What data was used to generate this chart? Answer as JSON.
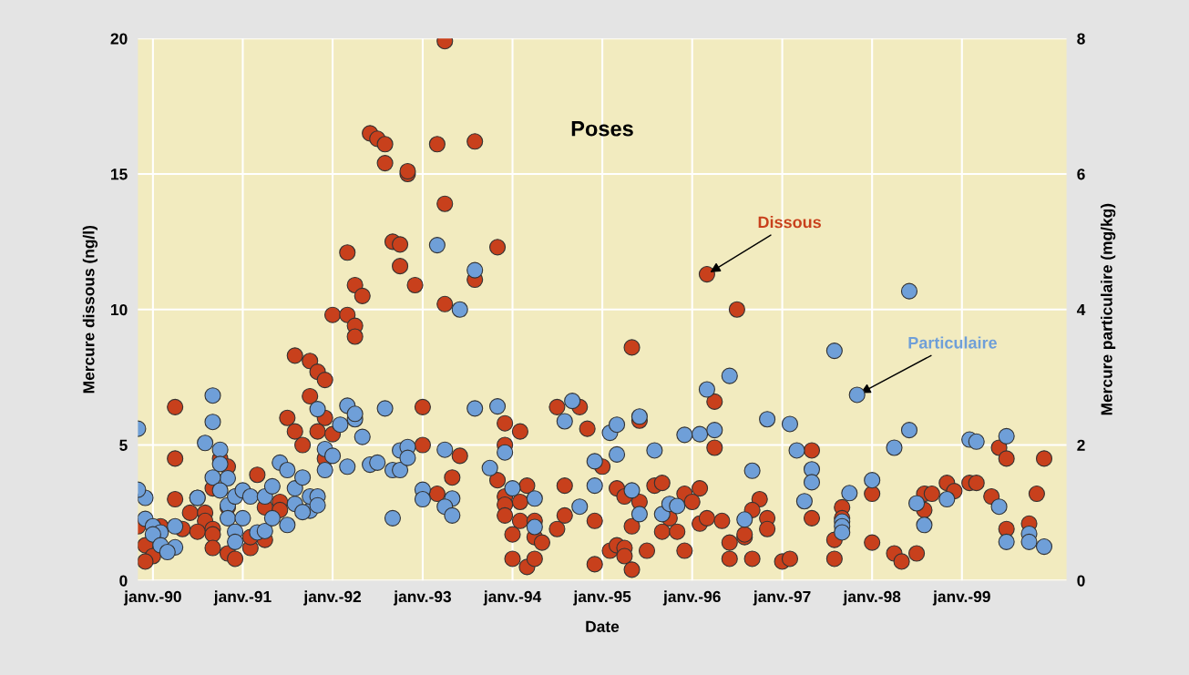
{
  "chart_data": {
    "type": "scatter",
    "title": "Poses",
    "xlabel": "Date",
    "ylabel": "Mercure dissous (ng/l)",
    "y2label": "Mercure particulaire (mg/kg)",
    "xlim": [
      "1989-11-01",
      "2000-03-01"
    ],
    "xticks": [
      {
        "value": "1990-01",
        "label": "janv.-90"
      },
      {
        "value": "1991-01",
        "label": "janv.-91"
      },
      {
        "value": "1992-01",
        "label": "janv.-92"
      },
      {
        "value": "1993-01",
        "label": "janv.-93"
      },
      {
        "value": "1994-01",
        "label": "janv.-94"
      },
      {
        "value": "1995-01",
        "label": "janv.-95"
      },
      {
        "value": "1996-01",
        "label": "janv.-96"
      },
      {
        "value": "1997-01",
        "label": "janv.-97"
      },
      {
        "value": "1998-01",
        "label": "janv.-98"
      },
      {
        "value": "1999-01",
        "label": "janv.-99"
      }
    ],
    "ylim": [
      0,
      20
    ],
    "yticks": [
      0,
      5,
      10,
      15,
      20
    ],
    "y2lim": [
      0,
      8
    ],
    "y2ticks": [
      0,
      2,
      4,
      6,
      8
    ],
    "grid": true,
    "legend": false,
    "marker": "circle",
    "annotations": [
      {
        "text": "Dissous",
        "x": "1996-03",
        "y": 11.3
      },
      {
        "text": "Particulaire",
        "x": "1997-11",
        "y": 6.85
      }
    ],
    "series": [
      {
        "color": "#c8401c",
        "x": [
          "1993-04",
          "1992-06",
          "1992-07",
          "1992-08",
          "1993-03",
          "1993-08",
          "1992-08",
          "1992-11",
          "1992-11",
          "1993-04",
          "1992-09",
          "1992-10",
          "1993-11",
          "1992-03",
          "1992-10",
          "1992-12",
          "1993-08",
          "1992-04",
          "1992-05",
          "1993-04",
          "1992-01",
          "1992-03",
          "1992-04",
          "1992-04",
          "1991-08",
          "1991-10",
          "1991-11",
          "1991-12",
          "1991-10",
          "1990-04",
          "1993-01",
          "1993-12",
          "1991-07",
          "1991-12",
          "1991-08",
          "1991-11",
          "1992-01",
          "1991-09",
          "1993-01",
          "1993-06",
          "1993-12",
          "1990-04",
          "1991-12",
          "1990-10",
          "1990-11",
          "1991-03",
          "1993-05",
          "1993-11",
          "1990-09",
          "1990-04",
          "1993-03",
          "1993-12",
          "1990-06",
          "1990-08",
          "1990-08",
          "1991-04",
          "1991-06",
          "1991-06",
          "1990-11",
          "1989-11",
          "1990-02",
          "1990-07",
          "1990-09",
          "1990-09",
          "1990-05",
          "1989-12",
          "1990-01",
          "1989-12",
          "1990-09",
          "1990-11",
          "1990-12",
          "1991-02",
          "1991-04",
          "1991-02",
          "1994-01",
          "1996-03",
          "1996-07",
          "1995-05",
          "1996-04",
          "1994-07",
          "1994-10",
          "1994-02",
          "1994-11",
          "1995-06",
          "1996-04",
          "1995-01",
          "1994-03",
          "1994-08",
          "1995-03",
          "1995-04",
          "1995-08",
          "1995-09",
          "1995-12",
          "1996-02",
          "1996-01",
          "1996-10",
          "1996-09",
          "1996-11",
          "1996-11",
          "1993-12",
          "1994-02",
          "1993-12",
          "1995-06",
          "1994-02",
          "1994-04",
          "1994-08",
          "1994-12",
          "1995-05",
          "1995-10",
          "1995-09",
          "1995-11",
          "1996-02",
          "1996-03",
          "1996-05",
          "1994-07",
          "1994-01",
          "1994-04",
          "1994-05",
          "1996-06",
          "1996-08",
          "1996-08",
          "1994-03",
          "1994-04",
          "1994-12",
          "1995-02",
          "1995-03",
          "1995-04",
          "1995-04",
          "1995-05",
          "1995-07",
          "1995-12",
          "1996-06",
          "1996-09",
          "1997-01",
          "1997-05",
          "1997-05",
          "1997-02",
          "1997-09",
          "1997-09",
          "1997-08",
          "1997-08",
          "1998-01",
          "1998-01",
          "1998-04",
          "1998-05",
          "1998-07",
          "1998-08",
          "1998-08",
          "1998-09",
          "1998-11",
          "1998-12",
          "1999-02",
          "1999-03",
          "1999-05",
          "1999-06",
          "1999-07",
          "1999-07",
          "1999-10",
          "1999-11",
          "1999-12"
        ],
        "values": [
          19.9,
          16.5,
          16.3,
          16.1,
          16.1,
          16.2,
          15.4,
          15.0,
          15.1,
          13.9,
          12.5,
          12.4,
          12.3,
          12.1,
          11.6,
          10.9,
          11.1,
          10.9,
          10.5,
          10.2,
          9.8,
          9.8,
          9.4,
          9.0,
          8.3,
          8.1,
          7.7,
          7.4,
          6.8,
          6.4,
          6.4,
          5.8,
          6.0,
          6.0,
          5.5,
          5.5,
          5.4,
          5.0,
          5.0,
          4.6,
          5.0,
          4.5,
          4.5,
          4.5,
          4.2,
          3.9,
          3.8,
          3.7,
          3.4,
          3.0,
          3.2,
          3.1,
          2.5,
          2.5,
          2.2,
          2.7,
          2.9,
          2.6,
          2.7,
          2.0,
          2.0,
          1.8,
          1.9,
          1.7,
          1.9,
          1.3,
          0.9,
          0.7,
          1.2,
          1.0,
          0.8,
          1.2,
          1.5,
          1.6,
          0.8,
          11.3,
          10.0,
          8.6,
          6.6,
          6.4,
          6.4,
          5.5,
          5.6,
          5.9,
          4.9,
          4.2,
          3.5,
          3.5,
          3.4,
          3.1,
          3.5,
          3.6,
          3.2,
          3.4,
          2.9,
          3.0,
          2.6,
          2.3,
          1.9,
          2.8,
          2.9,
          2.4,
          2.9,
          2.2,
          2.2,
          2.4,
          2.2,
          2.0,
          2.3,
          1.8,
          1.8,
          2.1,
          2.3,
          2.2,
          1.9,
          1.7,
          1.6,
          1.4,
          1.4,
          1.6,
          1.7,
          0.5,
          0.8,
          0.6,
          1.1,
          1.3,
          1.2,
          0.9,
          0.4,
          1.1,
          1.1,
          0.8,
          0.8,
          0.7,
          4.8,
          2.3,
          0.8,
          2.7,
          2.3,
          1.5,
          0.8,
          3.2,
          1.4,
          1.0,
          0.7,
          1.0,
          2.6,
          3.2,
          3.2,
          3.6,
          3.3,
          3.6,
          3.6,
          3.1,
          4.9,
          4.5,
          1.9,
          2.1,
          3.2,
          4.5
        ]
      },
      {
        "color": "#6f9fd8",
        "axis": "y2",
        "x": [
          "1989-11",
          "1990-09",
          "1990-09",
          "1990-08",
          "1990-10",
          "1990-10",
          "1990-11",
          "1990-09",
          "1990-10",
          "1989-12",
          "1989-11",
          "1990-07",
          "1990-07",
          "1989-12",
          "1990-01",
          "1990-02",
          "1990-01",
          "1990-02",
          "1990-04",
          "1990-03",
          "1990-04",
          "1990-11",
          "1990-12",
          "1991-01",
          "1991-02",
          "1990-11",
          "1991-01",
          "1990-12",
          "1990-12",
          "1991-03",
          "1991-04",
          "1991-04",
          "1991-05",
          "1991-06",
          "1991-07",
          "1991-05",
          "1991-07",
          "1991-08",
          "1991-09",
          "1991-08",
          "1991-10",
          "1991-09",
          "1991-10",
          "1991-11",
          "1991-11",
          "1991-12",
          "1991-12",
          "1992-01",
          "1992-03",
          "1992-02",
          "1992-03",
          "1992-04",
          "1992-04",
          "1991-11",
          "1992-05",
          "1992-06",
          "1992-07",
          "1992-08",
          "1992-09",
          "1992-10",
          "1992-10",
          "1992-11",
          "1992-11",
          "1993-01",
          "1993-01",
          "1993-04",
          "1993-05",
          "1993-04",
          "1993-05",
          "1993-03",
          "1993-08",
          "1993-06",
          "1993-08",
          "1993-11",
          "1992-09",
          "1993-10",
          "1993-12",
          "1994-01",
          "1994-09",
          "1994-08",
          "1994-04",
          "1994-04",
          "1994-10",
          "1994-12",
          "1994-12",
          "1995-03",
          "1995-02",
          "1995-03",
          "1995-06",
          "1995-08",
          "1995-05",
          "1995-06",
          "1995-09",
          "1995-10",
          "1995-11",
          "1995-12",
          "1996-02",
          "1996-04",
          "1996-03",
          "1996-06",
          "1996-09",
          "1996-08",
          "1996-11",
          "1997-02",
          "1997-03",
          "1997-05",
          "1997-05",
          "1997-04",
          "1997-08",
          "1997-11",
          "1998-06",
          "1998-06",
          "1998-04",
          "1998-01",
          "1997-10",
          "1997-09",
          "1997-09",
          "1997-09",
          "1998-07",
          "1998-08",
          "1998-11",
          "1999-02",
          "1999-03",
          "1999-07",
          "1999-06",
          "1999-07",
          "1999-10",
          "1999-10",
          "1999-12"
        ],
        "values": [
          2.24,
          2.73,
          2.34,
          2.03,
          1.93,
          1.72,
          1.51,
          1.52,
          1.33,
          1.22,
          1.34,
          1.22,
          1.22,
          0.91,
          0.8,
          0.71,
          0.68,
          0.52,
          0.49,
          0.42,
          0.8,
          1.11,
          1.24,
          1.33,
          1.24,
          0.92,
          0.92,
          0.72,
          0.57,
          0.71,
          0.73,
          1.24,
          1.39,
          1.74,
          1.63,
          0.92,
          0.82,
          1.36,
          1.52,
          1.13,
          1.03,
          1.01,
          1.24,
          1.24,
          1.11,
          1.63,
          1.94,
          1.84,
          1.68,
          2.3,
          2.58,
          2.38,
          2.46,
          2.53,
          2.12,
          1.71,
          1.74,
          2.54,
          1.63,
          1.63,
          1.92,
          1.97,
          1.81,
          1.34,
          1.2,
          1.93,
          1.21,
          1.09,
          0.96,
          4.95,
          4.58,
          4.0,
          2.54,
          2.57,
          0.92,
          1.66,
          1.89,
          1.36,
          2.65,
          2.35,
          1.21,
          0.79,
          1.09,
          1.4,
          1.76,
          1.86,
          2.18,
          2.3,
          2.42,
          1.92,
          1.33,
          0.98,
          0.98,
          1.13,
          1.1,
          2.15,
          2.16,
          2.22,
          2.82,
          3.02,
          1.62,
          0.9,
          2.38,
          2.31,
          1.92,
          1.64,
          1.45,
          1.17,
          3.39,
          2.74,
          4.27,
          2.22,
          1.96,
          1.48,
          1.29,
          0.87,
          0.8,
          0.71,
          1.14,
          0.82,
          1.2,
          2.08,
          2.05,
          2.13,
          1.09,
          0.57,
          0.69,
          0.57,
          0.5
        ]
      }
    ]
  }
}
